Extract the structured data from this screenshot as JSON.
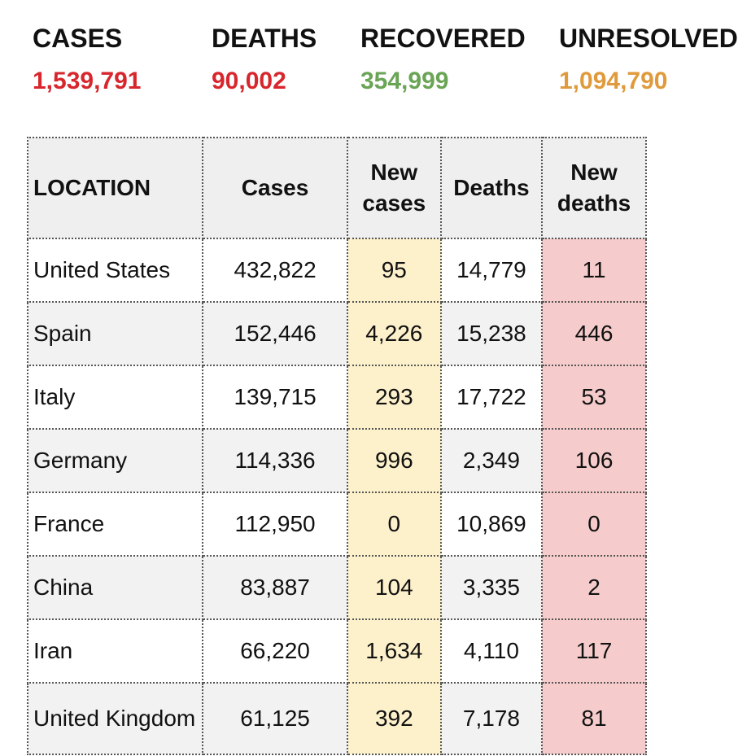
{
  "summary": [
    {
      "label": "CASES",
      "value": "1,539,791",
      "color": "#d7262c"
    },
    {
      "label": "DEATHS",
      "value": "90,002",
      "color": "#d7262c"
    },
    {
      "label": "RECOVERED",
      "value": "354,999",
      "color": "#6aa556"
    },
    {
      "label": "UNRESOLVED",
      "value": "1,094,790",
      "color": "#e09a3b"
    }
  ],
  "table": {
    "headers": {
      "location": "LOCATION",
      "cases": "Cases",
      "new_cases_1": "New",
      "new_cases_2": "cases",
      "deaths": "Deaths",
      "new_deaths_1": "New",
      "new_deaths_2": "deaths"
    },
    "rows": [
      {
        "location": "United States",
        "cases": "432,822",
        "new_cases": "95",
        "deaths": "14,779",
        "new_deaths": "11"
      },
      {
        "location": "Spain",
        "cases": "152,446",
        "new_cases": "4,226",
        "deaths": "15,238",
        "new_deaths": "446"
      },
      {
        "location": "Italy",
        "cases": "139,715",
        "new_cases": "293",
        "deaths": "17,722",
        "new_deaths": "53"
      },
      {
        "location": "Germany",
        "cases": "114,336",
        "new_cases": "996",
        "deaths": "2,349",
        "new_deaths": "106"
      },
      {
        "location": "France",
        "cases": "112,950",
        "new_cases": "0",
        "deaths": "10,869",
        "new_deaths": "0"
      },
      {
        "location": "China",
        "cases": "83,887",
        "new_cases": "104",
        "deaths": "3,335",
        "new_deaths": "2"
      },
      {
        "location": "Iran",
        "cases": "66,220",
        "new_cases": "1,634",
        "deaths": "4,110",
        "new_deaths": "117"
      },
      {
        "location": "United Kingdom",
        "cases": "61,125",
        "new_cases": "392",
        "deaths": "7,178",
        "new_deaths": "81"
      }
    ]
  }
}
